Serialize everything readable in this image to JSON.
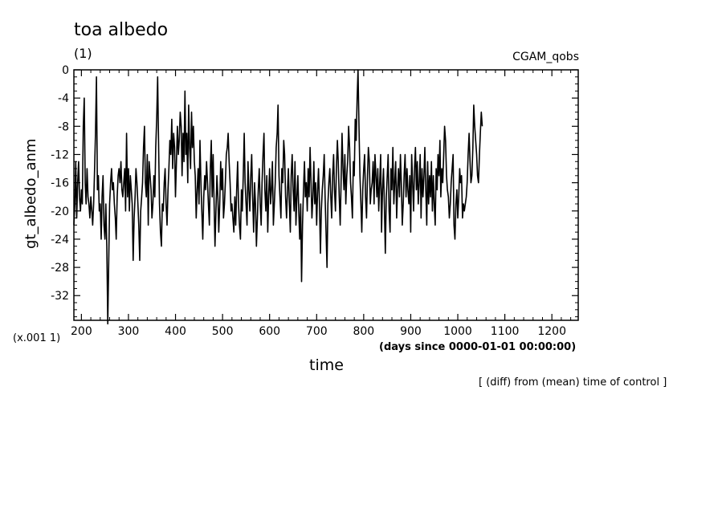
{
  "chart_data": {
    "type": "line",
    "title": "toa albedo",
    "units_label": "(1)",
    "source_label": "CGAM_qobs",
    "ylabel": "gt_albedo_anm",
    "y_scale_note": "(x.001 1)",
    "xlabel": "time",
    "x_units": "(days since 0000-01-01 00:00:00)",
    "footnote": "[ (diff) from (mean) time of control ]",
    "xlim": [
      184,
      1256
    ],
    "ylim": [
      -35.5,
      0
    ],
    "xticks": [
      200,
      300,
      400,
      500,
      600,
      700,
      800,
      900,
      1000,
      1100,
      1200
    ],
    "yticks": [
      0,
      -4,
      -8,
      -12,
      -16,
      -20,
      -24,
      -28,
      -32
    ],
    "series": [
      {
        "x_start": 184,
        "x_step": 2,
        "values": [
          -22,
          -19,
          -13,
          -21,
          -16,
          -13,
          -18,
          -20,
          -17,
          -19,
          -8,
          -4,
          -16,
          -19,
          -14,
          -18,
          -19,
          -21,
          -18,
          -20,
          -22,
          -19,
          -14,
          -9,
          -1,
          -17,
          -15,
          -20,
          -19,
          -24,
          -18,
          -15,
          -22,
          -24,
          -19,
          -25,
          -36,
          -27,
          -19,
          -16,
          -14,
          -17,
          -16,
          -19,
          -21,
          -24,
          -18,
          -15,
          -14,
          -16,
          -13,
          -17,
          -18,
          -16,
          -14,
          -20,
          -9,
          -18,
          -14,
          -20,
          -15,
          -17,
          -19,
          -27,
          -21,
          -18,
          -14,
          -16,
          -19,
          -22,
          -27,
          -20,
          -18,
          -16,
          -11,
          -8,
          -16,
          -18,
          -12,
          -22,
          -13,
          -15,
          -17,
          -21,
          -19,
          -15,
          -18,
          -11,
          -7,
          -1,
          -10,
          -19,
          -23,
          -25,
          -19,
          -20,
          -16,
          -14,
          -19,
          -22,
          -17,
          -14,
          -10,
          -12,
          -7,
          -14,
          -9,
          -11,
          -18,
          -13,
          -8,
          -12,
          -10,
          -6,
          -8,
          -15,
          -9,
          -13,
          -3,
          -12,
          -9,
          -16,
          -5,
          -11,
          -14,
          -6,
          -11,
          -8,
          -13,
          -15,
          -21,
          -17,
          -14,
          -19,
          -10,
          -16,
          -20,
          -24,
          -18,
          -15,
          -17,
          -13,
          -16,
          -19,
          -22,
          -14,
          -10,
          -18,
          -12,
          -19,
          -25,
          -20,
          -15,
          -18,
          -23,
          -19,
          -13,
          -17,
          -14,
          -21,
          -19,
          -16,
          -12,
          -11,
          -9,
          -13,
          -16,
          -20,
          -19,
          -21,
          -23,
          -18,
          -22,
          -17,
          -13,
          -19,
          -22,
          -24,
          -17,
          -20,
          -15,
          -9,
          -16,
          -19,
          -22,
          -13,
          -17,
          -20,
          -15,
          -12,
          -18,
          -23,
          -16,
          -19,
          -25,
          -21,
          -17,
          -14,
          -19,
          -22,
          -16,
          -12,
          -9,
          -17,
          -20,
          -15,
          -23,
          -18,
          -14,
          -19,
          -17,
          -13,
          -22,
          -19,
          -16,
          -11,
          -9,
          -5,
          -15,
          -18,
          -21,
          -14,
          -16,
          -10,
          -12,
          -18,
          -21,
          -17,
          -14,
          -19,
          -23,
          -15,
          -12,
          -17,
          -20,
          -13,
          -22,
          -18,
          -15,
          -20,
          -24,
          -19,
          -30,
          -22,
          -17,
          -13,
          -18,
          -16,
          -20,
          -14,
          -18,
          -11,
          -16,
          -21,
          -18,
          -13,
          -19,
          -16,
          -22,
          -17,
          -14,
          -19,
          -26,
          -20,
          -17,
          -15,
          -12,
          -18,
          -23,
          -28,
          -19,
          -16,
          -14,
          -18,
          -21,
          -15,
          -12,
          -17,
          -20,
          -14,
          -10,
          -13,
          -18,
          -22,
          -16,
          -9,
          -14,
          -17,
          -12,
          -19,
          -15,
          -13,
          -8,
          -11,
          -16,
          -18,
          -21,
          -13,
          -15,
          -7,
          -10,
          -4,
          0,
          -8,
          -15,
          -19,
          -23,
          -17,
          -14,
          -12,
          -18,
          -21,
          -15,
          -11,
          -13,
          -19,
          -17,
          -16,
          -13,
          -19,
          -12,
          -15,
          -18,
          -14,
          -20,
          -16,
          -12,
          -23,
          -17,
          -14,
          -19,
          -26,
          -18,
          -15,
          -12,
          -20,
          -23,
          -14,
          -17,
          -11,
          -19,
          -16,
          -13,
          -21,
          -17,
          -14,
          -18,
          -12,
          -16,
          -22,
          -19,
          -15,
          -12,
          -18,
          -14,
          -17,
          -19,
          -15,
          -23,
          -12,
          -16,
          -20,
          -14,
          -11,
          -17,
          -13,
          -19,
          -16,
          -12,
          -21,
          -14,
          -18,
          -15,
          -11,
          -17,
          -22,
          -13,
          -19,
          -15,
          -18,
          -13,
          -20,
          -15,
          -19,
          -22,
          -14,
          -17,
          -12,
          -15,
          -10,
          -18,
          -14,
          -16,
          -12,
          -8,
          -10,
          -15,
          -17,
          -18,
          -21,
          -19,
          -16,
          -14,
          -12,
          -22,
          -24,
          -19,
          -17,
          -21,
          -18,
          -14,
          -16,
          -15,
          -21,
          -19,
          -20,
          -19,
          -18,
          -16,
          -12,
          -9,
          -13,
          -16,
          -15,
          -11,
          -5,
          -8,
          -10,
          -12,
          -15,
          -16,
          -12,
          -9,
          -6,
          -8
        ]
      }
    ]
  }
}
